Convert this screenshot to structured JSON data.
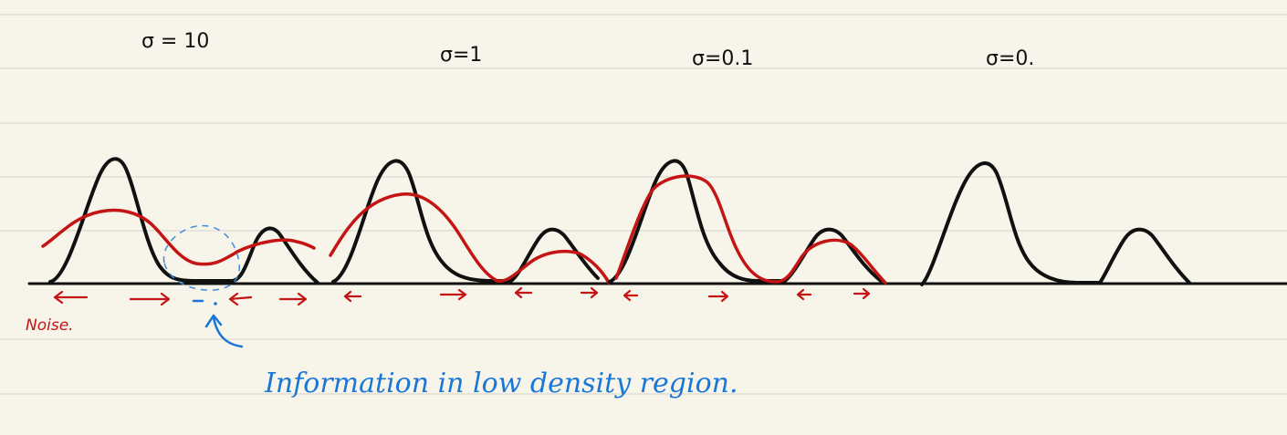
{
  "panels": [
    {
      "sigma_label": "σ = 10",
      "smoothing": 10
    },
    {
      "sigma_label": "σ=1",
      "smoothing": 1
    },
    {
      "sigma_label": "σ=0.1",
      "smoothing": 0.1
    },
    {
      "sigma_label": "σ=0.",
      "smoothing": 0
    }
  ],
  "annotations": {
    "noise_label": "Noise.",
    "info_label": "Information in low density region."
  },
  "colors": {
    "paper": "#f7f4ea",
    "rule_line": "#e6e3da",
    "true_density": "#111111",
    "noisy_density": "#c41414",
    "annotation": "#1a77d6"
  }
}
